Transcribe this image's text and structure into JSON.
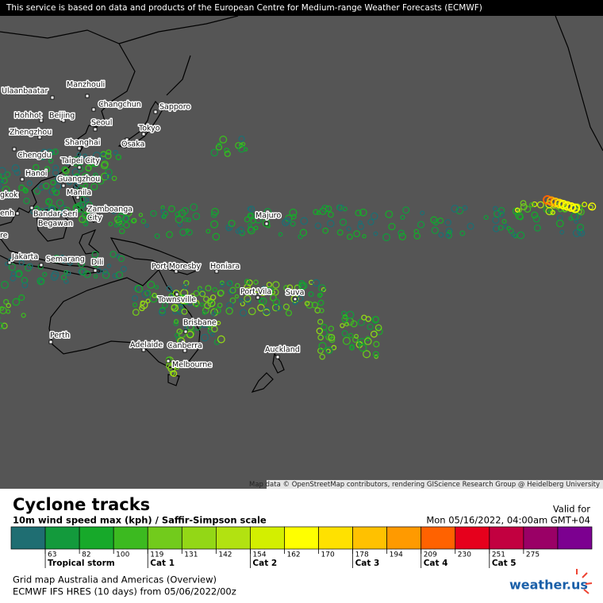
{
  "notice": "This service is based on data and products of the European Centre for Medium-range Weather Forecasts (ECMWF)",
  "map": {
    "cities": [
      "Ulaanbaatar",
      "Manzhouli",
      "Changchun",
      "Sapporo",
      "Hohhot",
      "Beijing",
      "Seoul",
      "Tokyo",
      "Zhengzhou",
      "Shanghai",
      "Osaka",
      "Chengdu",
      "Taipei City",
      "Hanoi",
      "Guangzhou",
      "Manila",
      "Zamboanga",
      "City",
      "Bandar Seri",
      "Begawan",
      "Majuro",
      "Jakarta",
      "Semarang",
      "Dili",
      "Port Moresby",
      "Honiara",
      "Port Vila",
      "Suva",
      "Townsville",
      "Brisbane",
      "Perth",
      "Adelaide",
      "Canberra",
      "Auckland",
      "Melbourne",
      "gkok",
      "enh",
      "re"
    ],
    "attribution": "Map data © OpenStreetMap contributors, rendering GIScience Research Group @ Heidelberg University"
  },
  "legend": {
    "title": "Cyclone tracks",
    "subtitle": "10m wind speed max (kph) / Saffir-Simpson scale",
    "valid_label": "Valid for",
    "valid_time": "Mon 05/16/2022, 04:00am GMT+04",
    "colors": [
      "#1f6e72",
      "#139a3c",
      "#17a92a",
      "#3cba20",
      "#72cb1c",
      "#93d716",
      "#b2e211",
      "#d3ef00",
      "#ffff00",
      "#ffe100",
      "#ffc100",
      "#ff9a00",
      "#ff6200",
      "#e6001c",
      "#c20040",
      "#9a0066",
      "#7c0090"
    ],
    "ticks": [
      63,
      82,
      100,
      119,
      131,
      142,
      154,
      162,
      170,
      178,
      194,
      209,
      230,
      251,
      275
    ],
    "categories": [
      {
        "label": "Tropical storm",
        "from": 63
      },
      {
        "label": "Cat 1",
        "from": 119
      },
      {
        "label": "Cat 2",
        "from": 154
      },
      {
        "label": "Cat 3",
        "from": 178
      },
      {
        "label": "Cat 4",
        "from": 209
      },
      {
        "label": "Cat 5",
        "from": 251
      }
    ]
  },
  "footer": {
    "grid": "Grid map Australia and Americas (Overview)",
    "model": "ECMWF IFS HRES (10 days) from 05/06/2022/00z",
    "logo": "weather.us"
  }
}
